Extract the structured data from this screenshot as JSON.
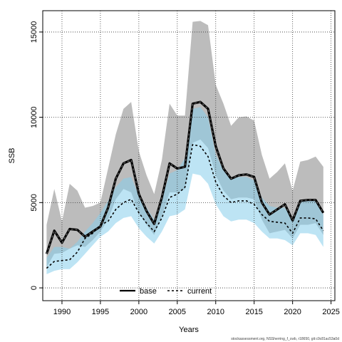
{
  "chart_data": {
    "type": "line",
    "xlabel": "Years",
    "ylabel": "SSB",
    "xlim": [
      1987.5,
      2025.5
    ],
    "ylim": [
      -750,
      16250
    ],
    "xticks": [
      1990,
      1995,
      2000,
      2005,
      2010,
      2015,
      2020,
      2025
    ],
    "yticks": [
      0,
      5000,
      10000,
      15000
    ],
    "grid": true,
    "legend_position": "bottom-center",
    "x": [
      1988,
      1989,
      1990,
      1991,
      1992,
      1993,
      1994,
      1995,
      1996,
      1997,
      1998,
      1999,
      2000,
      2001,
      2002,
      2003,
      2004,
      2005,
      2006,
      2007,
      2008,
      2009,
      2010,
      2011,
      2012,
      2013,
      2014,
      2015,
      2016,
      2017,
      2018,
      2019,
      2020,
      2021,
      2022,
      2023,
      2024
    ],
    "series": [
      {
        "name": "base",
        "color": "#000000",
        "band_color": "#a6a6a6",
        "values": [
          2000,
          3350,
          2650,
          3450,
          3400,
          3000,
          3300,
          3600,
          4700,
          6400,
          7300,
          7500,
          5500,
          4500,
          3750,
          5300,
          7300,
          7000,
          7100,
          10800,
          10900,
          10500,
          8300,
          7000,
          6400,
          6600,
          6650,
          6500,
          5000,
          4300,
          4600,
          4900,
          3950,
          5100,
          5150,
          5150,
          4400
        ],
        "lower": [
          1200,
          2000,
          2050,
          2300,
          2500,
          2400,
          2800,
          3300,
          4000,
          5200,
          5800,
          5600,
          4400,
          3700,
          3100,
          4200,
          5600,
          5600,
          5800,
          8500,
          8700,
          8200,
          6600,
          5700,
          5200,
          5300,
          5300,
          5200,
          4000,
          3200,
          3300,
          3400,
          2900,
          3700,
          3700,
          3800,
          3100
        ],
        "upper": [
          3700,
          5800,
          3900,
          6100,
          5700,
          4700,
          4800,
          5000,
          7000,
          9000,
          10500,
          10900,
          8000,
          6600,
          5500,
          7500,
          10800,
          10100,
          10100,
          15600,
          15650,
          15400,
          11900,
          10800,
          9500,
          10000,
          10050,
          9800,
          7800,
          6400,
          6800,
          7300,
          5700,
          7400,
          7500,
          7700,
          7100
        ]
      },
      {
        "name": "current",
        "color": "#000000",
        "band_color": "#87ceeb",
        "values": [
          1150,
          1550,
          1600,
          1650,
          2100,
          2900,
          3200,
          3700,
          3900,
          4600,
          5000,
          5200,
          4400,
          3800,
          3300,
          4100,
          5300,
          5500,
          5900,
          8400,
          8300,
          7700,
          6200,
          5400,
          5000,
          5100,
          5100,
          4900,
          4300,
          3900,
          3850,
          3800,
          3200,
          4100,
          4100,
          4050,
          3350
        ],
        "lower": [
          800,
          1000,
          1100,
          1100,
          1500,
          2000,
          2500,
          3000,
          3300,
          3800,
          4100,
          4200,
          3500,
          3000,
          2600,
          3300,
          4200,
          4300,
          4600,
          6700,
          6600,
          6100,
          4900,
          4200,
          3900,
          4000,
          4000,
          3800,
          3300,
          2900,
          2900,
          2800,
          2500,
          3200,
          3200,
          3100,
          2400
        ],
        "upper": [
          1750,
          2400,
          2400,
          2300,
          2700,
          3300,
          3800,
          4400,
          5100,
          5900,
          6400,
          6500,
          5400,
          4700,
          4000,
          5200,
          6700,
          6900,
          7600,
          10500,
          10600,
          10000,
          7800,
          6900,
          6400,
          6500,
          6500,
          6300,
          5300,
          4800,
          4700,
          4700,
          4000,
          5100,
          5200,
          5200,
          4300
        ]
      }
    ]
  },
  "watermark": "stockassessment.org, NSSherring_f_cwb, r18650, git:c9c81ac53a0d"
}
